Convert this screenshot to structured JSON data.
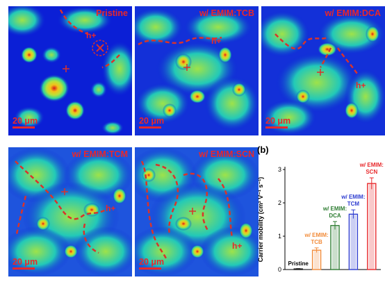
{
  "panels": [
    {
      "title": "Pristine",
      "scale": "20 μm",
      "carrier": "h+",
      "id": "p1"
    },
    {
      "title": "w/ EMIM:TCB",
      "scale": "20 μm",
      "carrier": "h+",
      "id": "p2"
    },
    {
      "title": "w/ EMIM:DCA",
      "scale": "20 μm",
      "carrier": "h+",
      "id": "p3"
    },
    {
      "title": "w/ EMIM:TCM",
      "scale": "20 μm",
      "carrier": "h+",
      "id": "p4"
    },
    {
      "title": "w/ EMIM:SCN",
      "scale": "20 μm",
      "carrier": "h+",
      "id": "p5"
    }
  ],
  "colors": {
    "map_background": "#0b1fd6",
    "label_red": "#e8282b",
    "pristine": "#222222",
    "tcb": "#f28c3a",
    "dca": "#2e7d32",
    "tcm": "#2f3ed1",
    "scn": "#e8282b"
  },
  "chart_data": {
    "type": "bar",
    "panel_label": "(b)",
    "ylabel": "Carrier mobility (cm² V⁻¹ s⁻¹)",
    "ylim": [
      0,
      3
    ],
    "yticks": [
      "0",
      "1",
      "2",
      "3"
    ],
    "categories": [
      "Pristine",
      "w/ EMIM: TCB",
      "w/ EMIM: DCA",
      "w/ EMIM: TCM",
      "w/ EMIM: SCN"
    ],
    "category_lines": [
      [
        "Pristine"
      ],
      [
        "w/ EMIM:",
        "TCB"
      ],
      [
        "w/ EMIM:",
        "DCA"
      ],
      [
        "w/ EMIM:",
        "TCM"
      ],
      [
        "w/ EMIM:",
        "SCN"
      ]
    ],
    "values": [
      0.02,
      0.58,
      1.32,
      1.66,
      2.58
    ],
    "errors": [
      0.01,
      0.07,
      0.12,
      0.13,
      0.17
    ],
    "bar_colors": [
      "#222222",
      "#f28c3a",
      "#2e7d32",
      "#2f3ed1",
      "#e8282b"
    ]
  }
}
